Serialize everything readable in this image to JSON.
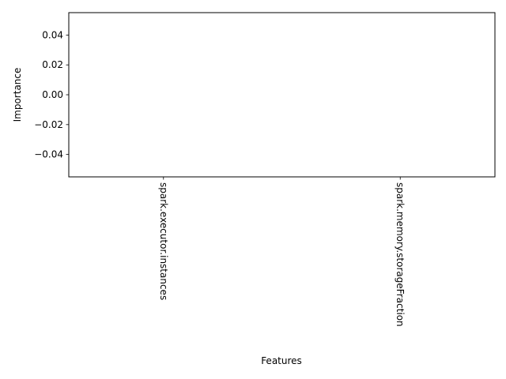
{
  "chart_data": {
    "type": "bar",
    "categories": [
      "spark.executor.instances",
      "spark.memory.storageFraction"
    ],
    "values": [
      0,
      0
    ],
    "xlabel": "Features",
    "ylabel": "Importance",
    "ylim": [
      -0.055,
      0.055
    ],
    "yticks": [
      "0.04",
      "0.02",
      "0.00",
      "−0.02",
      "−0.04"
    ],
    "ytick_values": [
      0.04,
      0.02,
      0.0,
      -0.02,
      -0.04
    ],
    "grid": false,
    "legend": "none",
    "colors": {
      "axis": "#000000",
      "background": "#ffffff"
    }
  }
}
